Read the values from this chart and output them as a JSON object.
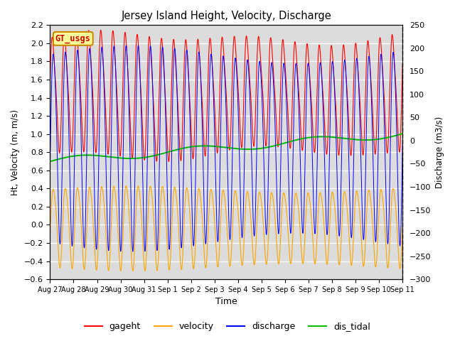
{
  "title": "Jersey Island Height, Velocity, Discharge",
  "xlabel": "Time",
  "ylabel_left": "Ht, Velocity (m, m/s)",
  "ylabel_right": "Discharge (m3/s)",
  "ylim_left": [
    -0.6,
    2.2
  ],
  "ylim_right": [
    -300,
    250
  ],
  "yticks_left": [
    -0.6,
    -0.4,
    -0.2,
    0.0,
    0.2,
    0.4,
    0.6,
    0.8,
    1.0,
    1.2,
    1.4,
    1.6,
    1.8,
    2.0,
    2.2
  ],
  "yticks_right": [
    -300,
    -250,
    -200,
    -150,
    -100,
    -50,
    0,
    50,
    100,
    150,
    200,
    250
  ],
  "xtick_labels": [
    "Aug 27",
    "Aug 28",
    "Aug 29",
    "Aug 30",
    "Aug 31",
    "Sep 1",
    "Sep 2",
    "Sep 3",
    "Sep 4",
    "Sep 5",
    "Sep 6",
    "Sep 7",
    "Sep 8",
    "Sep 9",
    "Sep 10",
    "Sep 11"
  ],
  "colors": {
    "gageht": "#FF0000",
    "velocity": "#FFA500",
    "discharge": "#0000FF",
    "dis_tidal": "#00BB00"
  },
  "background_color": "#DCDCDC",
  "gt_usgs_box_color": "#FFFF99",
  "gt_usgs_border_color": "#CC8800",
  "gt_usgs_text_color": "#CC0000",
  "tidal_period_hours": 12.4,
  "n_points": 4000,
  "total_days": 15
}
